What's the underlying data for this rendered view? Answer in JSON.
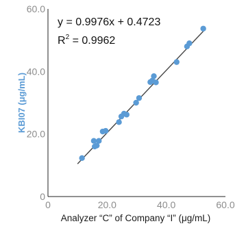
{
  "chart_data": {
    "type": "scatter",
    "title": "",
    "xlabel": "Analyzer “C” of Company “I” (μg/mL)",
    "ylabel": "KBI07 (μg/mL)",
    "xlim": [
      0,
      60
    ],
    "ylim": [
      0,
      60
    ],
    "x_ticks": [
      "0",
      "20.0",
      "40.0",
      "60.0"
    ],
    "y_ticks": [
      "0",
      "20.0",
      "40.0",
      "60.0"
    ],
    "grid": false,
    "equation": "y = 0.9976x + 0.4723",
    "r2_label": "R",
    "r2_sup": "2",
    "r2_value": " = 0.9962",
    "fit": {
      "slope": 0.9976,
      "intercept": 0.4723,
      "x_range": [
        10,
        53
      ]
    },
    "point_color": "#5b9bd5",
    "line_color": "#444444",
    "points": [
      {
        "x": 11.5,
        "y": 12.3
      },
      {
        "x": 15.5,
        "y": 17.8
      },
      {
        "x": 15.8,
        "y": 16.0
      },
      {
        "x": 16.5,
        "y": 16.3
      },
      {
        "x": 17.2,
        "y": 17.8
      },
      {
        "x": 18.5,
        "y": 20.8
      },
      {
        "x": 19.5,
        "y": 21.0
      },
      {
        "x": 24.0,
        "y": 23.8
      },
      {
        "x": 24.8,
        "y": 25.6
      },
      {
        "x": 25.7,
        "y": 26.5
      },
      {
        "x": 26.6,
        "y": 26.2
      },
      {
        "x": 29.8,
        "y": 30.0
      },
      {
        "x": 30.8,
        "y": 31.5
      },
      {
        "x": 34.6,
        "y": 36.6
      },
      {
        "x": 35.3,
        "y": 37.1
      },
      {
        "x": 35.8,
        "y": 38.5
      },
      {
        "x": 36.5,
        "y": 36.5
      },
      {
        "x": 43.5,
        "y": 43.0
      },
      {
        "x": 47.0,
        "y": 48.0
      },
      {
        "x": 47.8,
        "y": 49.0
      },
      {
        "x": 52.5,
        "y": 53.7
      }
    ]
  }
}
